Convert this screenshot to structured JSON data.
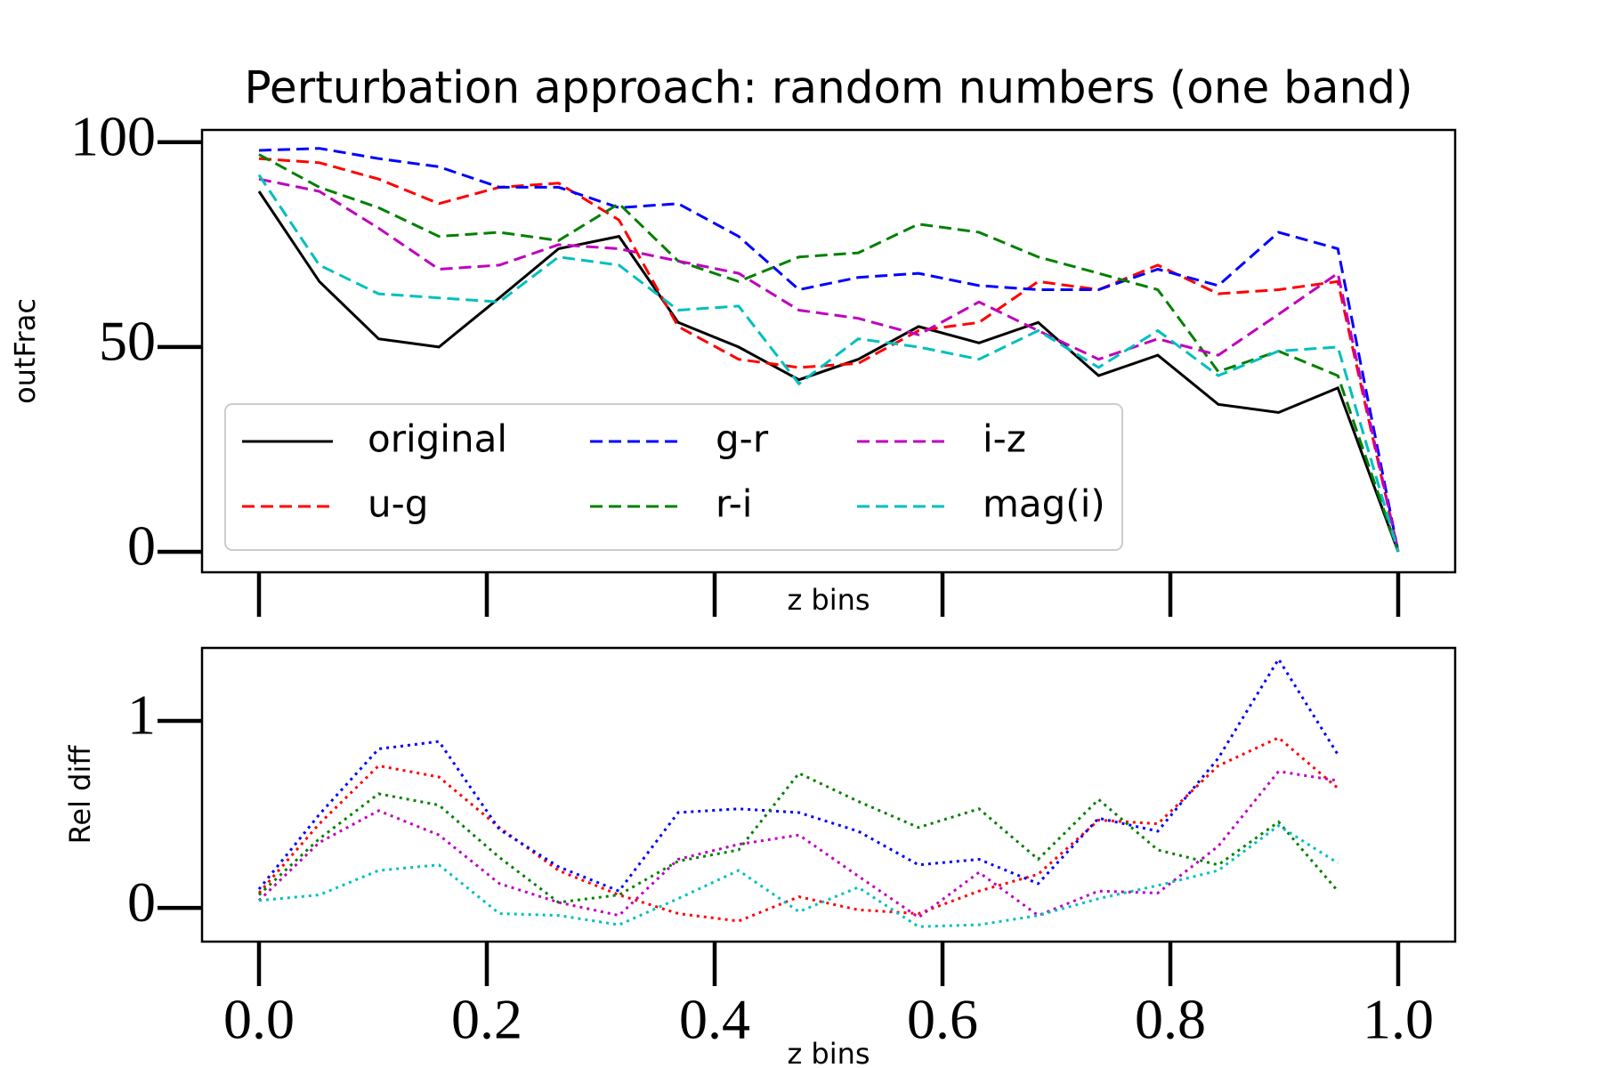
{
  "chart_data": [
    {
      "type": "line",
      "title": "Perturbation approach: random numbers (one band)",
      "ylabel": "outFrac",
      "xlabel": "z bins",
      "x": [
        0,
        0.053,
        0.105,
        0.158,
        0.211,
        0.263,
        0.316,
        0.368,
        0.421,
        0.474,
        0.526,
        0.579,
        0.632,
        0.684,
        0.737,
        0.789,
        0.842,
        0.895,
        0.947,
        1.0
      ],
      "xlim": [
        -0.05,
        1.05
      ],
      "xticks": [
        0,
        0.2,
        0.4,
        0.6,
        0.8,
        1
      ],
      "ylim": [
        -5,
        103
      ],
      "yticks": [
        0,
        50,
        100
      ],
      "legend": "lower left",
      "series": [
        {
          "name": "original",
          "color": "#000000",
          "linestyle": "solid",
          "values": [
            88,
            66,
            52,
            50,
            62,
            74,
            77,
            56,
            50,
            42,
            47,
            55,
            51,
            56,
            43,
            48,
            36,
            34,
            40,
            0
          ]
        },
        {
          "name": "u-g",
          "color": "#ff0000",
          "linestyle": "dashed",
          "values": [
            96,
            95,
            91,
            85,
            89,
            90,
            81,
            55,
            47,
            45,
            46,
            54,
            56,
            66,
            64,
            70,
            63,
            64,
            66,
            0
          ]
        },
        {
          "name": "g-r",
          "color": "#0000ff",
          "linestyle": "dashed",
          "values": [
            98,
            98.5,
            96,
            94,
            89,
            89,
            84,
            85,
            77,
            64,
            67,
            68,
            65,
            64,
            64,
            69,
            65,
            78,
            74,
            0
          ]
        },
        {
          "name": "r-i",
          "color": "#008000",
          "linestyle": "dashed",
          "values": [
            97,
            89,
            84,
            77,
            78,
            76,
            85,
            71,
            66,
            72,
            73,
            80,
            78,
            72,
            68,
            64,
            44,
            49,
            43,
            0
          ]
        },
        {
          "name": "i-z",
          "color": "#bf00bf",
          "linestyle": "dashed",
          "values": [
            91,
            88,
            79,
            69,
            70,
            75,
            74,
            71,
            68,
            59,
            57,
            53,
            61,
            54,
            47,
            52,
            48,
            58,
            68,
            0
          ]
        },
        {
          "name": "mag(i)",
          "color": "#00bfbf",
          "linestyle": "dashed",
          "values": [
            92,
            70,
            63,
            62,
            61,
            72,
            70,
            59,
            60,
            41,
            52,
            50,
            47,
            54,
            45,
            54,
            43,
            49,
            50,
            0
          ]
        }
      ]
    },
    {
      "type": "line",
      "ylabel": "Rel diff",
      "xlabel": "z bins",
      "x": [
        0,
        0.053,
        0.105,
        0.158,
        0.211,
        0.263,
        0.316,
        0.368,
        0.421,
        0.474,
        0.526,
        0.579,
        0.632,
        0.684,
        0.737,
        0.789,
        0.842,
        0.895,
        0.947
      ],
      "xlim": [
        -0.05,
        1.05
      ],
      "xticks": [
        {
          "value": 0,
          "label": "0.0"
        },
        0.2,
        0.4,
        0.6,
        0.8,
        {
          "value": 1,
          "label": "1.0"
        }
      ],
      "ylim": [
        -0.18,
        1.39
      ],
      "yticks": [
        0,
        1
      ],
      "series": [
        {
          "color": "#ff0000",
          "linestyle": "dotted",
          "values": [
            0.08,
            0.45,
            0.76,
            0.7,
            0.43,
            0.2,
            0.07,
            -0.03,
            -0.07,
            0.06,
            -0.01,
            -0.03,
            0.09,
            0.18,
            0.47,
            0.45,
            0.76,
            0.91,
            0.64
          ]
        },
        {
          "color": "#0000ff",
          "linestyle": "dotted",
          "values": [
            0.1,
            0.5,
            0.85,
            0.89,
            0.42,
            0.22,
            0.09,
            0.51,
            0.53,
            0.51,
            0.41,
            0.23,
            0.26,
            0.13,
            0.48,
            0.41,
            0.8,
            1.33,
            0.82
          ]
        },
        {
          "color": "#008000",
          "linestyle": "dotted",
          "values": [
            0.07,
            0.37,
            0.61,
            0.55,
            0.27,
            0.03,
            0.07,
            0.25,
            0.31,
            0.72,
            0.57,
            0.43,
            0.53,
            0.26,
            0.58,
            0.31,
            0.23,
            0.46,
            0.09
          ]
        },
        {
          "color": "#bf00bf",
          "linestyle": "dotted",
          "values": [
            0.04,
            0.35,
            0.52,
            0.39,
            0.13,
            0.03,
            -0.04,
            0.26,
            0.34,
            0.39,
            0.17,
            -0.05,
            0.19,
            -0.04,
            0.09,
            0.08,
            0.33,
            0.73,
            0.68
          ]
        },
        {
          "color": "#00bfbf",
          "linestyle": "dotted",
          "values": [
            0.04,
            0.07,
            0.2,
            0.23,
            -0.03,
            -0.04,
            -0.09,
            0.05,
            0.2,
            -0.02,
            0.11,
            -0.1,
            -0.09,
            -0.04,
            0.05,
            0.12,
            0.2,
            0.44,
            0.24
          ]
        }
      ]
    }
  ]
}
